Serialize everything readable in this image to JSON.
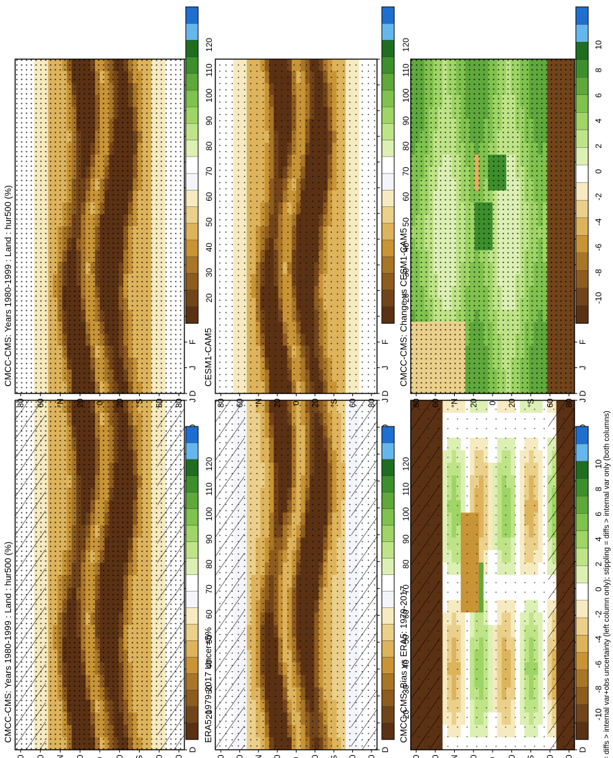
{
  "figure": {
    "footnote": "hatching = diffs > internal var+obs uncertainty (left column only); stippling = diffs > internal var only (both columns)"
  },
  "chart_data": [
    {
      "type": "heatmap",
      "id": "model_clim",
      "title": "CMCC-CMS: Years 1980-1999 : Land : hur500 (%)",
      "x_tick_labels": [
        "D",
        "J",
        "F",
        "M",
        "A",
        "M",
        "J",
        "J",
        "A",
        "S",
        "O",
        "N",
        "D",
        "J"
      ],
      "y_tick_labels": [
        "80",
        "60",
        "°N",
        "20",
        "0",
        "20",
        "°S",
        "60",
        "80"
      ],
      "colorbar": {
        "labels": [
          "120",
          "110",
          "100",
          "90",
          "80",
          "70",
          "60",
          "50",
          "40",
          "30",
          "20"
        ],
        "ramp": "rh"
      },
      "pattern": "clim",
      "stipple": "dense",
      "hatch": true
    },
    {
      "type": "heatmap",
      "id": "model_clim_2",
      "title": "CMCC-CMS: Years 1980-1999 : Land : hur500 (%)",
      "x_tick_labels": [
        "D",
        "J",
        "F",
        "M",
        "A",
        "M",
        "J",
        "J",
        "A",
        "S",
        "O",
        "N",
        "D",
        "J"
      ],
      "y_tick_labels": [
        "80",
        "60",
        "°N",
        "20",
        "0",
        "20",
        "°S",
        "60",
        "80"
      ],
      "colorbar": {
        "labels": [
          "120",
          "110",
          "100",
          "90",
          "80",
          "70",
          "60",
          "50",
          "40",
          "30",
          "20"
        ],
        "ramp": "rh"
      },
      "pattern": "clim",
      "stipple": "dense",
      "hatch": false
    },
    {
      "type": "heatmap",
      "id": "obs_clim",
      "title": "ERA5: 1979-2017 Uncer=5%",
      "x_tick_labels": [
        "D",
        "J",
        "F",
        "M",
        "A",
        "M",
        "J",
        "J",
        "A",
        "S",
        "O",
        "N",
        "D",
        "J"
      ],
      "y_tick_labels": [
        "80",
        "60",
        "°N",
        "20",
        "0",
        "20",
        "°S",
        "60",
        "80"
      ],
      "colorbar": {
        "labels": [
          "120",
          "110",
          "100",
          "90",
          "80",
          "70",
          "60",
          "50",
          "40",
          "30",
          "20"
        ],
        "ramp": "rh"
      },
      "pattern": "clim_obs",
      "stipple": "medium",
      "hatch": true
    },
    {
      "type": "heatmap",
      "id": "ref_model_clim",
      "title": "CESM1-CAM5",
      "x_tick_labels": [
        "D",
        "J",
        "F",
        "M",
        "A",
        "M",
        "J",
        "J",
        "A",
        "S",
        "O",
        "N",
        "D",
        "J"
      ],
      "y_tick_labels": [
        "80",
        "60",
        "°N",
        "20",
        "0",
        "20",
        "°S",
        "60",
        "80"
      ],
      "colorbar": {
        "labels": [
          "120",
          "110",
          "100",
          "90",
          "80",
          "70",
          "60",
          "50",
          "40",
          "30",
          "20"
        ],
        "ramp": "rh"
      },
      "pattern": "clim",
      "stipple": "medium",
      "hatch": false
    },
    {
      "type": "heatmap",
      "id": "bias",
      "title": "CMCC-CMS: Bias vs ERA5: 1979-2017",
      "x_tick_labels": [
        "D",
        "J",
        "F",
        "M",
        "A",
        "M",
        "J",
        "J",
        "A",
        "S",
        "O",
        "N",
        "D",
        "J"
      ],
      "y_tick_labels": [
        "80",
        "60",
        "°N",
        "20",
        "0",
        "20",
        "°S",
        "60",
        "80"
      ],
      "colorbar": {
        "labels": [
          "10",
          "8",
          "6",
          "4",
          "2",
          "0",
          "-2",
          "-4",
          "-6",
          "-8",
          "-10"
        ],
        "ramp": "diff"
      },
      "pattern": "bias",
      "stipple": "sparse",
      "hatch": true
    },
    {
      "type": "heatmap",
      "id": "change",
      "title": "CMCC-CMS: Change vs CESM1-CAM5",
      "x_tick_labels": [
        "D",
        "J",
        "F",
        "M",
        "A",
        "M",
        "J",
        "J",
        "A",
        "S",
        "O",
        "N",
        "D",
        "J"
      ],
      "y_tick_labels": [
        "80",
        "60",
        "°N",
        "20",
        "0",
        "20",
        "°S",
        "60",
        "80"
      ],
      "colorbar": {
        "labels": [
          "10",
          "8",
          "6",
          "4",
          "2",
          "0",
          "-2",
          "-4",
          "-6",
          "-8",
          "-10"
        ],
        "ramp": "diff"
      },
      "pattern": "change",
      "stipple": "dense",
      "hatch": false
    }
  ],
  "colors": {
    "rh": [
      "#1e6fd0",
      "#66b6ee",
      "#1f6e1f",
      "#3d8f2c",
      "#5fa83c",
      "#7fc24e",
      "#9ed566",
      "#bfe488",
      "#ddf0b4",
      "#ffffff",
      "#f4f5fb",
      "#f6eac0",
      "#ead08a",
      "#ddb35c",
      "#c89436",
      "#a97628",
      "#8e5c1f",
      "#72441a",
      "#5b3114"
    ],
    "diff": [
      "#1e6fd0",
      "#66b6ee",
      "#1f6e1f",
      "#3d8f2c",
      "#5fa83c",
      "#7fc24e",
      "#9ed566",
      "#bfe488",
      "#ddf0b4",
      "#ffffff",
      "#f6eac0",
      "#ead08a",
      "#ddb35c",
      "#c89436",
      "#a97628",
      "#8e5c1f",
      "#72441a",
      "#5b3114"
    ]
  }
}
